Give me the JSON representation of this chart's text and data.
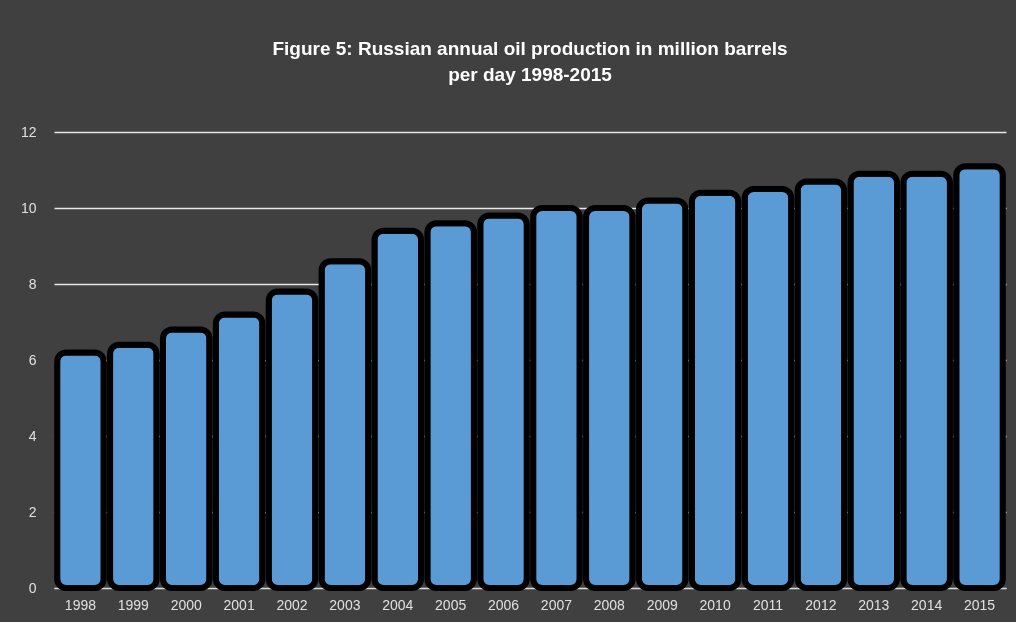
{
  "chart_data": {
    "type": "bar",
    "title": "Figure 5: Russian annual oil production in million barrels\nper day 1998-2015",
    "categories": [
      "1998",
      "1999",
      "2000",
      "2001",
      "2002",
      "2003",
      "2004",
      "2005",
      "2006",
      "2007",
      "2008",
      "2009",
      "2010",
      "2011",
      "2012",
      "2013",
      "2014",
      "2015"
    ],
    "values": [
      6.2,
      6.4,
      6.8,
      7.2,
      7.8,
      8.6,
      9.4,
      9.6,
      9.8,
      10.0,
      10.0,
      10.2,
      10.4,
      10.5,
      10.7,
      10.9,
      10.9,
      11.1
    ],
    "color": "#5b9bd5",
    "ylim": [
      0,
      12
    ],
    "yticks": [
      0,
      2,
      4,
      6,
      8,
      10,
      12
    ],
    "grid": "y"
  }
}
